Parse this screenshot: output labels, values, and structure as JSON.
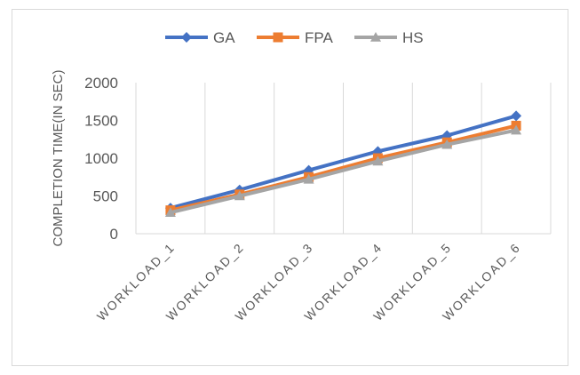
{
  "chart_data": {
    "type": "line",
    "title": "",
    "xlabel": "",
    "ylabel": "COMPLETION TIME(IN SEC)",
    "categories": [
      "WORKLOAD_1",
      "WORKLOAD_2",
      "WORKLOAD_3",
      "WORKLOAD_4",
      "WORKLOAD_5",
      "WORKLOAD_6"
    ],
    "ylim": [
      0,
      2000
    ],
    "yticks": [
      "0",
      "500",
      "1000",
      "1500",
      "2000"
    ],
    "grid": "vertical",
    "legend_position": "top",
    "series": [
      {
        "name": "GA",
        "color": "#4472c4",
        "marker": "diamond",
        "values": [
          340,
          580,
          840,
          1090,
          1300,
          1560
        ]
      },
      {
        "name": "FPA",
        "color": "#ed7d31",
        "marker": "square",
        "values": [
          310,
          520,
          750,
          1000,
          1210,
          1430
        ]
      },
      {
        "name": "HS",
        "color": "#a5a5a5",
        "marker": "triangle",
        "values": [
          280,
          500,
          720,
          960,
          1180,
          1370
        ]
      }
    ]
  }
}
